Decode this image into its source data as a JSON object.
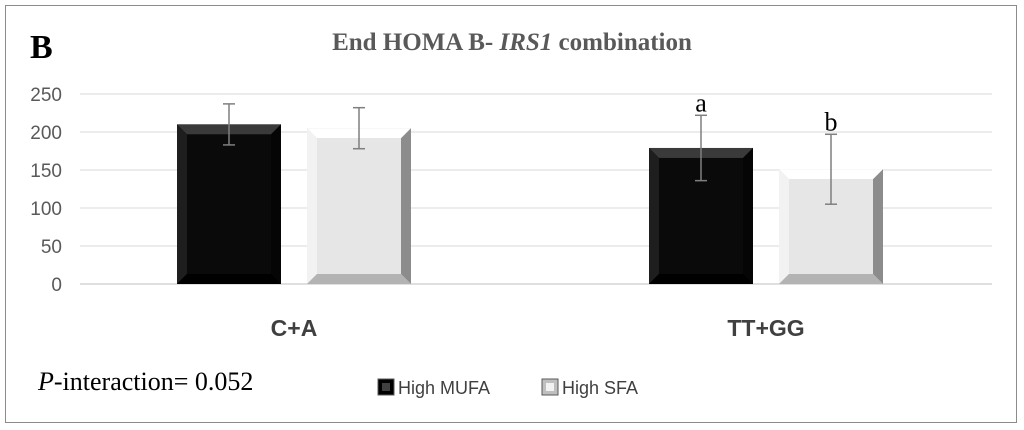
{
  "chart_data": {
    "type": "bar",
    "panel_label": "B",
    "title_prefix": "End HOMA B- ",
    "title_gene": "IRS1",
    "title_suffix": " combination",
    "categories": [
      "C+A",
      "TT+GG"
    ],
    "series": [
      {
        "name": "High MUFA",
        "color": "#0a0a0a",
        "values": [
          210,
          179
        ],
        "error": [
          27,
          43
        ]
      },
      {
        "name": "High SFA",
        "color": "#e6e6e6",
        "values": [
          205,
          151
        ],
        "error": [
          27,
          46
        ]
      }
    ],
    "sig_labels": [
      [
        "",
        "a"
      ],
      [
        "",
        "b"
      ]
    ],
    "ylim": [
      0,
      250
    ],
    "yticks": [
      "0",
      "50",
      "100",
      "150",
      "200",
      "250"
    ],
    "grid": true,
    "legend_position": "bottom",
    "annotation_p_italic": "P",
    "annotation_rest": "-interaction= 0.052"
  }
}
